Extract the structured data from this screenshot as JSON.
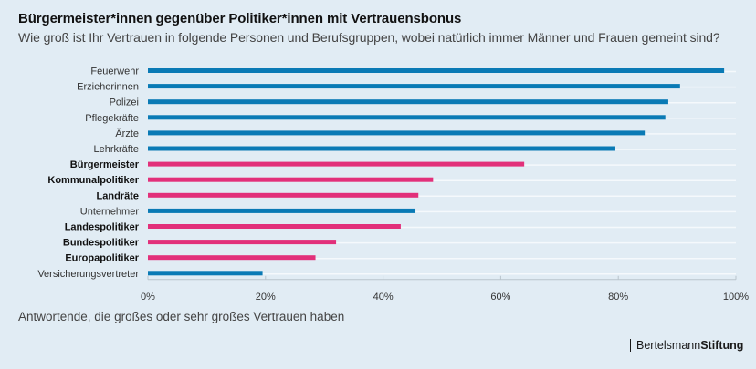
{
  "header": {
    "title": "Bürgermeister*innen gegenüber Politiker*innen mit Vertrauensbonus",
    "subtitle": "Wie groß ist Ihr Vertrauen in folgende Personen und Berufsgruppen, wobei natürlich immer Männer und Frauen gemeint sind?"
  },
  "footer": {
    "note": "Antwortende, die großes oder sehr großes Vertrauen haben",
    "logo_regular": "Bertelsmann",
    "logo_bold": "Stiftung"
  },
  "colors": {
    "background": "#e1ecf4",
    "blue": "#0a7ab5",
    "pink": "#e2307a",
    "gridline": "#f5f9fc"
  },
  "chart_data": {
    "type": "bar",
    "orientation": "horizontal",
    "title": "Bürgermeister*innen gegenüber Politiker*innen mit Vertrauensbonus",
    "xlabel": "Antwortende, die großes oder sehr großes Vertrauen haben",
    "ylabel": "",
    "xlim": [
      0,
      100
    ],
    "x_ticks": [
      "0%",
      "20%",
      "40%",
      "60%",
      "80%",
      "100%"
    ],
    "x_tick_values": [
      0,
      20,
      40,
      60,
      80,
      100
    ],
    "grid": true,
    "legend": "none",
    "categories": [
      "Feuerwehr",
      "Erzieherinnen",
      "Polizei",
      "Pflegekräfte",
      "Ärzte",
      "Lehrkräfte",
      "Bürgermeister",
      "Kommunalpolitiker",
      "Landräte",
      "Unternehmer",
      "Landespolitiker",
      "Bundespolitiker",
      "Europapolitiker",
      "Versicherungsvertreter"
    ],
    "values": [
      98,
      90.5,
      88.5,
      88,
      84.5,
      79.5,
      64,
      48.5,
      46,
      45.5,
      43,
      32,
      28.5,
      19.5
    ],
    "highlight": [
      false,
      false,
      false,
      false,
      false,
      false,
      true,
      true,
      true,
      false,
      true,
      true,
      true,
      false
    ]
  }
}
